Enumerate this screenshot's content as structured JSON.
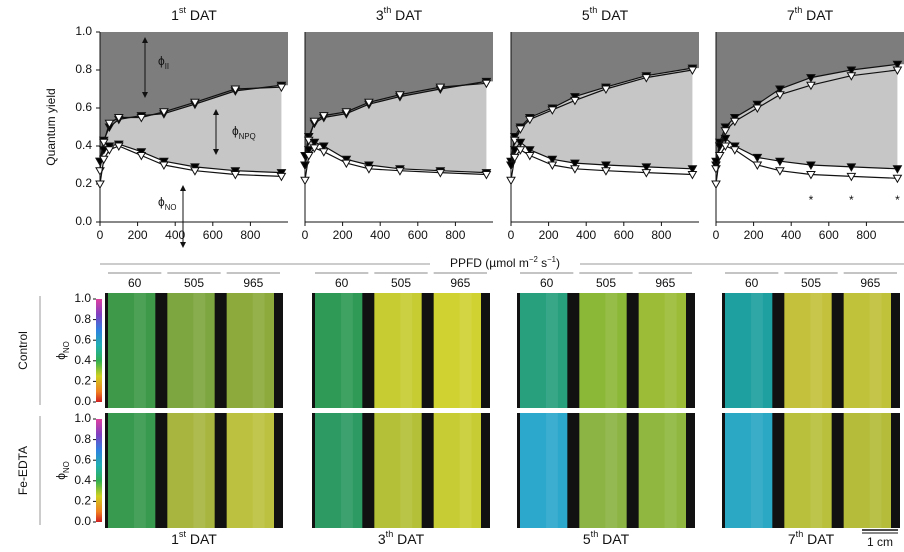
{
  "chart_data": [
    {
      "type": "line",
      "title": [
        "1",
        "st",
        " DAT"
      ],
      "ylabel": "Quantum yield",
      "x": [
        0,
        20,
        50,
        100,
        220,
        340,
        505,
        720,
        965
      ],
      "xlim": [
        0,
        1000
      ],
      "xticks": [
        0,
        200,
        400,
        600,
        800
      ],
      "ylim": [
        0,
        1
      ],
      "yticks": [
        {
          "value": 0,
          "label": "0.0"
        },
        {
          "value": 0.2,
          "label": "0.2"
        },
        {
          "value": 0.4,
          "label": "0.4"
        },
        {
          "value": 0.6,
          "label": "0.6"
        },
        {
          "value": 0.8,
          "label": "0.8"
        },
        {
          "value": 1,
          "label": "1.0"
        }
      ],
      "series": [
        {
          "color": "#000000",
          "values": [
            0.32,
            0.43,
            0.5,
            0.54,
            0.56,
            0.57,
            0.62,
            0.69,
            0.72
          ]
        },
        {
          "color": "#ffffff",
          "values": [
            0.27,
            0.42,
            0.52,
            0.55,
            0.55,
            0.58,
            0.63,
            0.7,
            0.71
          ]
        },
        {
          "color": "#000000",
          "values": [
            0.32,
            0.38,
            0.4,
            0.41,
            0.37,
            0.32,
            0.29,
            0.27,
            0.26
          ]
        },
        {
          "color": "#ffffff",
          "values": [
            0.2,
            0.33,
            0.38,
            0.4,
            0.35,
            0.3,
            0.27,
            0.25,
            0.24
          ]
        }
      ],
      "annotations": [
        {
          "text": [
            "ϕ",
            "II"
          ]
        },
        {
          "text": [
            "ϕ",
            "NPQ"
          ]
        },
        {
          "text": [
            "ϕ",
            "NO"
          ]
        }
      ]
    },
    {
      "type": "line",
      "title": [
        "3",
        "th",
        " DAT"
      ],
      "x": [
        0,
        20,
        50,
        100,
        220,
        340,
        505,
        720,
        965
      ],
      "xlim": [
        0,
        1000
      ],
      "xticks": [
        0,
        200,
        400,
        600,
        800
      ],
      "ylim": [
        0,
        1
      ],
      "series": [
        {
          "color": "#000000",
          "values": [
            0.35,
            0.45,
            0.52,
            0.55,
            0.57,
            0.62,
            0.66,
            0.7,
            0.74
          ]
        },
        {
          "color": "#ffffff",
          "values": [
            0.3,
            0.43,
            0.53,
            0.56,
            0.58,
            0.63,
            0.67,
            0.71,
            0.73
          ]
        },
        {
          "color": "#000000",
          "values": [
            0.3,
            0.38,
            0.42,
            0.4,
            0.33,
            0.3,
            0.28,
            0.27,
            0.26
          ]
        },
        {
          "color": "#ffffff",
          "values": [
            0.22,
            0.35,
            0.39,
            0.37,
            0.31,
            0.28,
            0.27,
            0.26,
            0.25
          ]
        }
      ]
    },
    {
      "type": "line",
      "title": [
        "5",
        "th",
        " DAT"
      ],
      "x": [
        0,
        20,
        50,
        100,
        220,
        340,
        505,
        720,
        965
      ],
      "xlim": [
        0,
        1000
      ],
      "xticks": [
        0,
        200,
        400,
        600,
        800
      ],
      "ylim": [
        0,
        1
      ],
      "series": [
        {
          "color": "#000000",
          "values": [
            0.32,
            0.45,
            0.5,
            0.55,
            0.6,
            0.66,
            0.71,
            0.77,
            0.81
          ]
        },
        {
          "color": "#ffffff",
          "values": [
            0.3,
            0.43,
            0.49,
            0.54,
            0.59,
            0.64,
            0.7,
            0.76,
            0.8
          ]
        },
        {
          "color": "#000000",
          "values": [
            0.3,
            0.38,
            0.42,
            0.38,
            0.33,
            0.31,
            0.3,
            0.29,
            0.28
          ]
        },
        {
          "color": "#ffffff",
          "values": [
            0.22,
            0.34,
            0.38,
            0.35,
            0.3,
            0.28,
            0.27,
            0.26,
            0.25
          ]
        }
      ]
    },
    {
      "type": "line",
      "title": [
        "7",
        "th",
        " DAT"
      ],
      "x": [
        0,
        20,
        50,
        100,
        220,
        340,
        505,
        720,
        965
      ],
      "xlim": [
        0,
        1000
      ],
      "xticks": [
        0,
        200,
        400,
        600,
        800
      ],
      "ylim": [
        0,
        1
      ],
      "series": [
        {
          "color": "#000000",
          "values": [
            0.3,
            0.42,
            0.5,
            0.55,
            0.62,
            0.7,
            0.76,
            0.8,
            0.83
          ]
        },
        {
          "color": "#ffffff",
          "values": [
            0.28,
            0.4,
            0.48,
            0.53,
            0.6,
            0.67,
            0.72,
            0.77,
            0.8
          ]
        },
        {
          "color": "#000000",
          "values": [
            0.32,
            0.4,
            0.44,
            0.4,
            0.34,
            0.32,
            0.3,
            0.29,
            0.28
          ]
        },
        {
          "color": "#ffffff",
          "values": [
            0.2,
            0.35,
            0.4,
            0.38,
            0.3,
            0.27,
            0.25,
            0.24,
            0.23
          ]
        }
      ],
      "annotations": [
        {
          "text": "*",
          "x": 505
        },
        {
          "text": "*",
          "x": 720
        },
        {
          "text": "*",
          "x": 965
        }
      ]
    }
  ],
  "xlabel": [
    "PPFD (µmol m",
    "−2",
    " s",
    "−1",
    ")"
  ],
  "images": {
    "rows": [
      "Control",
      "Fe-EDTA"
    ],
    "row_ylabel": [
      "ϕ",
      "NO"
    ],
    "colorbar_ticks": [
      {
        "value": 0,
        "label": "0.0"
      },
      {
        "value": 0.2,
        "label": "0.2"
      },
      {
        "value": 0.4,
        "label": "0.4"
      },
      {
        "value": 0.6,
        "label": "0.6"
      },
      {
        "value": 0.8,
        "label": "0.8"
      },
      {
        "value": 1,
        "label": "1.0"
      }
    ],
    "columns": [
      "60",
      "505",
      "965"
    ],
    "titles": [
      [
        "1",
        "st",
        " DAT"
      ],
      [
        "3",
        "th",
        " DAT"
      ],
      [
        "5",
        "th",
        " DAT"
      ],
      [
        "7",
        "th",
        " DAT"
      ]
    ],
    "scale_bar": "1 cm"
  }
}
